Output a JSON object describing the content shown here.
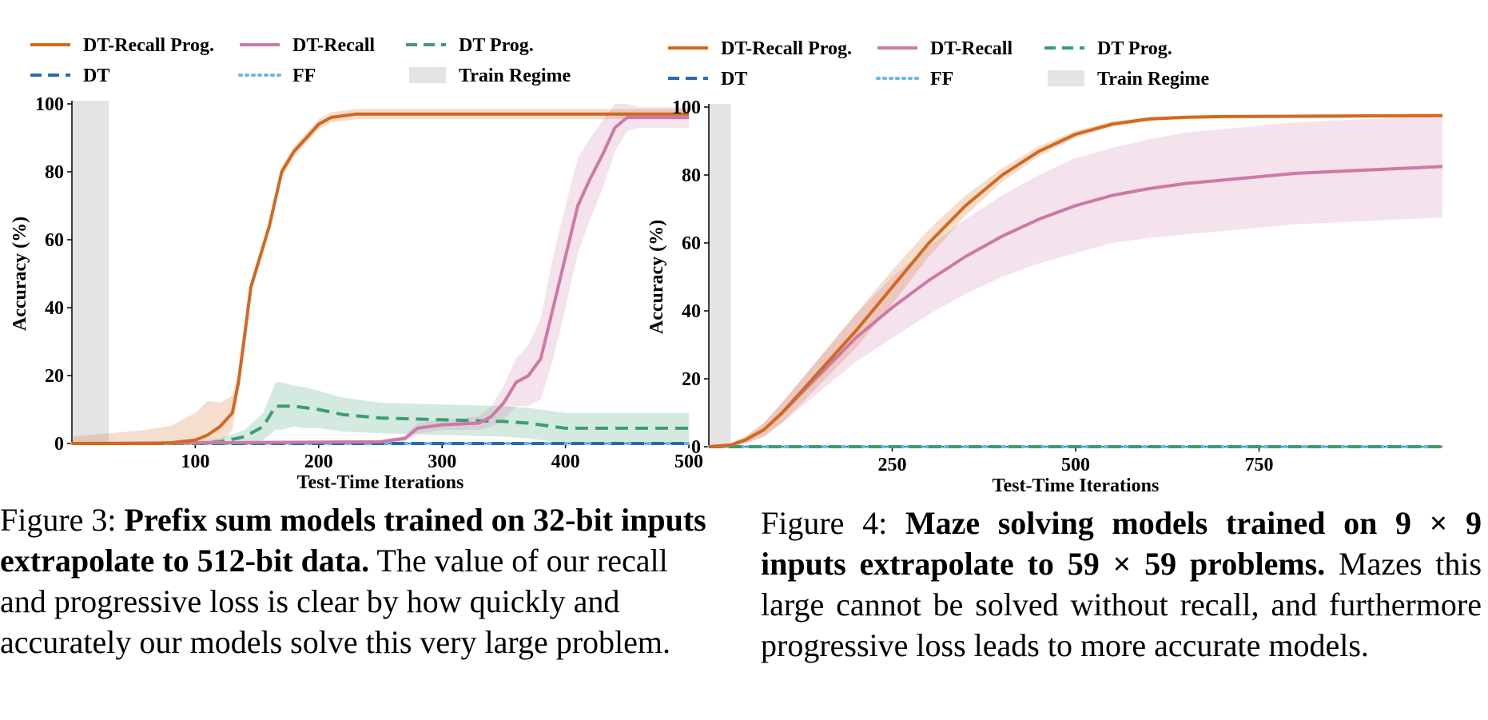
{
  "captions": {
    "fig3": {
      "label": "Figure 3: ",
      "bold": "Prefix sum models trained on 32-bit inputs extrapolate to 512-bit data.",
      "rest": " The value of our recall and progressive loss is clear by how quickly and accurately our models solve this very large problem."
    },
    "fig4": {
      "label": "Figure 4:  ",
      "bold": "Maze solving models trained on 9 × 9 inputs extrapolate to 59 × 59 problems.",
      "rest": " Mazes this large cannot be solved without recall, and furthermore progressive loss leads to more accurate models."
    }
  },
  "colors": {
    "dt_recall_prog": "#d2691e",
    "dt_recall": "#cc79a7",
    "dt_prog": "#3a9e72",
    "dt": "#2a6ab0",
    "ff": "#6cb6e6",
    "train_regime": "#e4e4e4"
  },
  "chart_data": [
    {
      "type": "line",
      "xlabel": "Test-Time Iterations",
      "ylabel": "Accuracy (%)",
      "xlim": [
        0,
        500
      ],
      "ylim": [
        0,
        100
      ],
      "xticks": [
        100,
        200,
        300,
        400,
        500
      ],
      "yticks": [
        0,
        20,
        40,
        60,
        80,
        100
      ],
      "legend_position": "top",
      "legend": [
        "DT-Recall Prog.",
        "DT-Recall",
        "DT Prog.",
        "DT",
        "FF",
        "Train Regime"
      ],
      "train_regime": [
        0,
        30
      ],
      "series": [
        {
          "name": "DT-Recall Prog.",
          "color_key": "dt_recall_prog",
          "style": "solid",
          "x": [
            0,
            60,
            80,
            100,
            110,
            120,
            130,
            135,
            140,
            145,
            150,
            160,
            170,
            180,
            190,
            200,
            210,
            220,
            230,
            240,
            300,
            400,
            500
          ],
          "y": [
            0,
            0,
            0.2,
            1,
            2.5,
            5,
            9,
            18,
            32,
            46,
            52,
            64,
            80,
            86,
            90,
            94,
            96,
            96.5,
            97,
            97,
            97,
            97,
            97
          ],
          "band": [
            2,
            4,
            5,
            8,
            10,
            7,
            5,
            3,
            2,
            2,
            1.5,
            1.5,
            1.5,
            1.5,
            1.5,
            1.5,
            1.5,
            1.5,
            1.5,
            1.5,
            1.5,
            1.5,
            1.5
          ]
        },
        {
          "name": "DT-Recall",
          "color_key": "dt_recall",
          "style": "solid",
          "x": [
            0,
            250,
            270,
            280,
            300,
            330,
            340,
            350,
            360,
            370,
            380,
            390,
            400,
            410,
            420,
            430,
            440,
            450,
            460,
            470,
            500
          ],
          "y": [
            0,
            0.5,
            1.5,
            4.5,
            5.5,
            6,
            8,
            12,
            18,
            20,
            25,
            40,
            55,
            70,
            78,
            85,
            93,
            96,
            96,
            96,
            96
          ],
          "band": [
            0,
            0.5,
            1,
            1.5,
            1.5,
            2,
            3,
            5,
            7,
            9,
            12,
            15,
            15,
            14,
            12,
            10,
            7,
            4,
            3,
            3,
            3
          ]
        },
        {
          "name": "DT Prog.",
          "color_key": "dt_prog",
          "style": "dashed",
          "x": [
            0,
            100,
            120,
            140,
            155,
            165,
            170,
            180,
            190,
            200,
            220,
            250,
            300,
            350,
            370,
            390,
            400,
            450,
            500
          ],
          "y": [
            0,
            0,
            0.5,
            2,
            5,
            11,
            11,
            11,
            10.5,
            10,
            8.5,
            7.5,
            7,
            6.5,
            6,
            5,
            4.5,
            4.5,
            4.5
          ],
          "band": [
            0,
            0.5,
            1,
            2,
            4,
            7,
            7,
            6,
            6,
            5.5,
            5,
            4.5,
            4.5,
            4.5,
            4.5,
            4.5,
            4.5,
            4.5,
            4.5
          ]
        },
        {
          "name": "DT",
          "color_key": "dt",
          "style": "dashed",
          "x": [
            0,
            500
          ],
          "y": [
            0,
            0
          ]
        },
        {
          "name": "FF",
          "color_key": "ff",
          "style": "dotted",
          "x": [
            0,
            500
          ],
          "y": [
            0,
            0
          ]
        }
      ]
    },
    {
      "type": "line",
      "xlabel": "Test-Time Iterations",
      "ylabel": "Accuracy (%)",
      "xlim": [
        0,
        1000
      ],
      "ylim": [
        0,
        100
      ],
      "xticks": [
        250,
        500,
        750
      ],
      "yticks": [
        0,
        20,
        40,
        60,
        80,
        100
      ],
      "legend_position": "top",
      "legend": [
        "DT-Recall Prog.",
        "DT-Recall",
        "DT Prog.",
        "DT",
        "FF",
        "Train Regime"
      ],
      "train_regime": [
        0,
        30
      ],
      "series": [
        {
          "name": "DT-Recall Prog.",
          "color_key": "dt_recall_prog",
          "style": "solid",
          "x": [
            0,
            30,
            50,
            75,
            100,
            150,
            200,
            250,
            300,
            350,
            400,
            450,
            500,
            550,
            600,
            650,
            700,
            800,
            900,
            1000
          ],
          "y": [
            0,
            0.5,
            2,
            5,
            10,
            22,
            34,
            47,
            60,
            71,
            80,
            87,
            92,
            95,
            96.5,
            97,
            97.2,
            97.3,
            97.4,
            97.5
          ],
          "band": [
            0,
            0.5,
            1,
            2,
            3,
            4,
            5,
            5,
            4,
            3,
            2,
            1.5,
            1,
            0.8,
            0.6,
            0.5,
            0.5,
            0.5,
            0.5,
            0.5
          ]
        },
        {
          "name": "DT-Recall",
          "color_key": "dt_recall",
          "style": "solid",
          "x": [
            0,
            30,
            50,
            75,
            100,
            150,
            200,
            250,
            300,
            350,
            400,
            450,
            500,
            550,
            600,
            650,
            700,
            750,
            800,
            850,
            900,
            950,
            1000
          ],
          "y": [
            0,
            0.5,
            2,
            5,
            10,
            21,
            32,
            41,
            49,
            56,
            62,
            67,
            71,
            74,
            76,
            77.5,
            78.5,
            79.5,
            80.5,
            81,
            81.5,
            82,
            82.5
          ],
          "band": [
            0,
            0.5,
            1,
            2,
            3,
            5,
            7,
            9,
            10,
            11,
            12,
            13,
            14,
            14,
            14.5,
            15,
            15,
            15,
            15,
            15,
            15,
            15,
            15
          ]
        },
        {
          "name": "DT Prog.",
          "color_key": "dt_prog",
          "style": "dashed",
          "x": [
            0,
            1000
          ],
          "y": [
            0,
            0
          ]
        },
        {
          "name": "DT",
          "color_key": "dt",
          "style": "dashed",
          "x": [
            0,
            1000
          ],
          "y": [
            0,
            0
          ]
        },
        {
          "name": "FF",
          "color_key": "ff",
          "style": "dotted",
          "x": [
            0,
            1000
          ],
          "y": [
            0,
            0
          ]
        }
      ]
    }
  ]
}
